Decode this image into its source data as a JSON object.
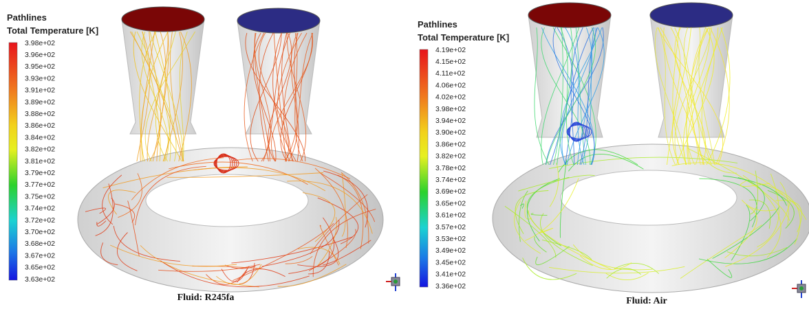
{
  "panels": [
    {
      "title": "Pathlines",
      "subtitle": "Total Temperature [K]",
      "colorbar_labels": [
        "3.98e+02",
        "3.96e+02",
        "3.95e+02",
        "3.93e+02",
        "3.91e+02",
        "3.89e+02",
        "3.88e+02",
        "3.86e+02",
        "3.84e+02",
        "3.82e+02",
        "3.81e+02",
        "3.79e+02",
        "3.77e+02",
        "3.75e+02",
        "3.74e+02",
        "3.72e+02",
        "3.70e+02",
        "3.68e+02",
        "3.67e+02",
        "3.65e+02",
        "3.63e+02"
      ],
      "caption": "Fluid: R245fa"
    },
    {
      "title": "Pathlines",
      "subtitle": "Total Temperature [K]",
      "colorbar_labels": [
        "4.19e+02",
        "4.15e+02",
        "4.11e+02",
        "4.06e+02",
        "4.02e+02",
        "3.98e+02",
        "3.94e+02",
        "3.90e+02",
        "3.86e+02",
        "3.82e+02",
        "3.78e+02",
        "3.74e+02",
        "3.69e+02",
        "3.65e+02",
        "3.61e+02",
        "3.57e+02",
        "3.53e+02",
        "3.49e+02",
        "3.45e+02",
        "3.41e+02",
        "3.36e+02"
      ],
      "caption": "Fluid: Air"
    }
  ]
}
